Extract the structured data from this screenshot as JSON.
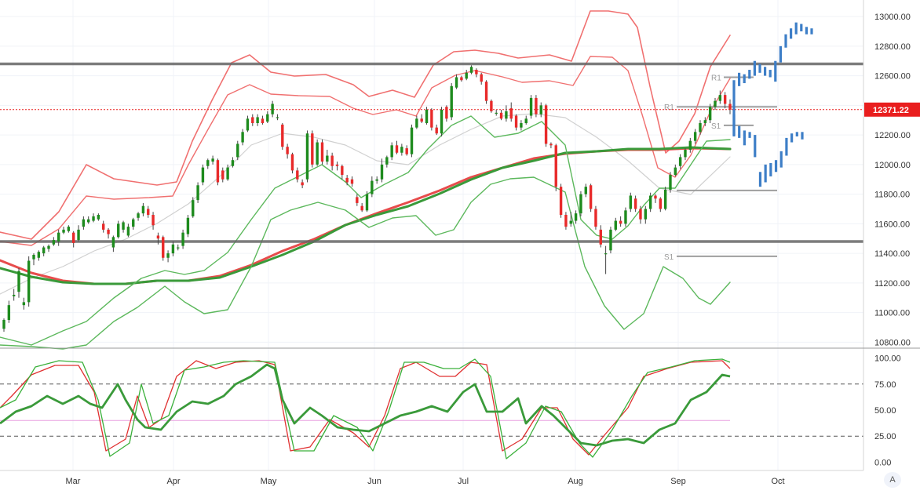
{
  "chart_data": {
    "type": "candlestick",
    "x_labels": [
      "Mar",
      "Apr",
      "May",
      "Jun",
      "Jul",
      "Aug",
      "Sep",
      "Oct"
    ],
    "price_axis": {
      "ticks": [
        "13000.00",
        "12800.00",
        "12600.00",
        "12400.00",
        "12200.00",
        "12000.00",
        "11800.00",
        "11600.00",
        "11400.00",
        "11200.00",
        "11000.00",
        "10800.00"
      ],
      "range": [
        10770,
        13080
      ]
    },
    "last_price": {
      "value": 12371.22,
      "label": "12371.22",
      "color": "#e91e1e"
    },
    "horizontal_levels": [
      12680,
      11480
    ],
    "pivot_lines": [
      {
        "label": "R1",
        "value": 12590
      },
      {
        "label": "R1",
        "value": 12390
      },
      {
        "label": "S1",
        "value": 12265
      },
      {
        "label": "S1",
        "value": 11380
      },
      {
        "label": "",
        "value": 11825
      }
    ],
    "candles": [
      [
        10890,
        10950,
        10870,
        10960
      ],
      [
        10950,
        11050,
        10930,
        11080
      ],
      [
        11110,
        11120,
        11080,
        11160
      ],
      [
        11140,
        11280,
        11100,
        11300
      ],
      [
        11050,
        11070,
        11020,
        11100
      ],
      [
        11070,
        11350,
        11040,
        11380
      ],
      [
        11360,
        11390,
        11320,
        11400
      ],
      [
        11370,
        11410,
        11350,
        11420
      ],
      [
        11400,
        11440,
        11380,
        11450
      ],
      [
        11430,
        11450,
        11410,
        11460
      ],
      [
        11460,
        11490,
        11450,
        11510
      ],
      [
        11480,
        11540,
        11450,
        11560
      ],
      [
        11540,
        11560,
        11530,
        11580
      ],
      [
        11550,
        11580,
        11540,
        11590
      ],
      [
        11540,
        11470,
        11440,
        11550
      ],
      [
        11490,
        11560,
        11480,
        11590
      ],
      [
        11580,
        11630,
        11560,
        11650
      ],
      [
        11610,
        11630,
        11600,
        11650
      ],
      [
        11620,
        11650,
        11610,
        11670
      ],
      [
        11630,
        11660,
        11620,
        11670
      ],
      [
        11600,
        11560,
        11540,
        11620
      ],
      [
        11560,
        11530,
        11500,
        11570
      ],
      [
        11440,
        11510,
        11410,
        11520
      ],
      [
        11510,
        11600,
        11500,
        11620
      ],
      [
        11560,
        11610,
        11540,
        11620
      ],
      [
        11520,
        11580,
        11510,
        11600
      ],
      [
        11580,
        11630,
        11560,
        11640
      ],
      [
        11640,
        11670,
        11620,
        11680
      ],
      [
        11670,
        11720,
        11650,
        11740
      ],
      [
        11700,
        11660,
        11640,
        11720
      ],
      [
        11660,
        11590,
        11560,
        11680
      ],
      [
        11520,
        11500,
        11460,
        11540
      ],
      [
        11510,
        11370,
        11350,
        11520
      ],
      [
        11370,
        11400,
        11340,
        11420
      ],
      [
        11400,
        11460,
        11380,
        11480
      ],
      [
        11440,
        11440,
        11420,
        11460
      ],
      [
        11450,
        11540,
        11430,
        11560
      ],
      [
        11530,
        11640,
        11510,
        11660
      ],
      [
        11650,
        11760,
        11640,
        11780
      ],
      [
        11760,
        11860,
        11740,
        11880
      ],
      [
        11880,
        11980,
        11860,
        12000
      ],
      [
        11990,
        12030,
        11970,
        12040
      ],
      [
        12020,
        12040,
        12000,
        12060
      ],
      [
        12030,
        11880,
        11860,
        12040
      ],
      [
        11960,
        11900,
        11880,
        11980
      ],
      [
        11900,
        11980,
        11890,
        12000
      ],
      [
        11990,
        12030,
        11980,
        12050
      ],
      [
        12050,
        12140,
        12030,
        12160
      ],
      [
        12150,
        12220,
        12130,
        12240
      ],
      [
        12230,
        12310,
        12220,
        12330
      ],
      [
        12320,
        12280,
        12260,
        12340
      ],
      [
        12280,
        12320,
        12260,
        12340
      ],
      [
        12310,
        12280,
        12270,
        12330
      ],
      [
        12290,
        12340,
        12280,
        12360
      ],
      [
        12340,
        12410,
        12320,
        12430
      ],
      [
        12320,
        12320,
        12300,
        12340
      ],
      [
        12270,
        12120,
        12100,
        12280
      ],
      [
        12120,
        12070,
        12040,
        12140
      ],
      [
        12070,
        11960,
        11940,
        12080
      ],
      [
        11960,
        11900,
        11880,
        11980
      ],
      [
        11880,
        11860,
        11840,
        11900
      ],
      [
        11900,
        12210,
        11880,
        12230
      ],
      [
        12210,
        12000,
        11980,
        12230
      ],
      [
        12000,
        12150,
        11990,
        12170
      ],
      [
        12150,
        12020,
        12000,
        12170
      ],
      [
        12020,
        12060,
        12000,
        12100
      ],
      [
        12060,
        11990,
        11960,
        12080
      ],
      [
        12000,
        11990,
        11960,
        12020
      ],
      [
        11990,
        11930,
        11900,
        12000
      ],
      [
        11910,
        11880,
        11860,
        11930
      ],
      [
        11900,
        11870,
        11850,
        11920
      ],
      [
        11780,
        11740,
        11720,
        11800
      ],
      [
        11720,
        11690,
        11680,
        11740
      ],
      [
        11690,
        11800,
        11680,
        11820
      ],
      [
        11800,
        11890,
        11780,
        11920
      ],
      [
        11890,
        11900,
        11870,
        11920
      ],
      [
        11900,
        12000,
        11880,
        12040
      ],
      [
        12000,
        12050,
        11980,
        12060
      ],
      [
        12050,
        12130,
        12030,
        12150
      ],
      [
        12130,
        12080,
        12070,
        12160
      ],
      [
        12080,
        12120,
        12060,
        12140
      ],
      [
        12110,
        12070,
        12060,
        12130
      ],
      [
        12070,
        12250,
        12050,
        12270
      ],
      [
        12250,
        12310,
        12240,
        12330
      ],
      [
        12310,
        12290,
        12280,
        12340
      ],
      [
        12280,
        12370,
        12270,
        12390
      ],
      [
        12370,
        12250,
        12230,
        12380
      ],
      [
        12250,
        12210,
        12200,
        12270
      ],
      [
        12210,
        12370,
        12190,
        12390
      ],
      [
        12390,
        12310,
        12290,
        12400
      ],
      [
        12320,
        12530,
        12300,
        12550
      ],
      [
        12520,
        12590,
        12510,
        12610
      ],
      [
        12590,
        12570,
        12560,
        12600
      ],
      [
        12580,
        12620,
        12570,
        12640
      ],
      [
        12620,
        12660,
        12610,
        12670
      ],
      [
        12640,
        12610,
        12590,
        12650
      ],
      [
        12610,
        12560,
        12540,
        12620
      ],
      [
        12560,
        12430,
        12410,
        12570
      ],
      [
        12430,
        12360,
        12350,
        12440
      ],
      [
        12350,
        12350,
        12330,
        12370
      ],
      [
        12350,
        12310,
        12300,
        12370
      ],
      [
        12310,
        12360,
        12290,
        12400
      ],
      [
        12380,
        12310,
        12290,
        12420
      ],
      [
        12330,
        12250,
        12230,
        12340
      ],
      [
        12250,
        12280,
        12230,
        12300
      ],
      [
        12280,
        12310,
        12270,
        12330
      ],
      [
        12330,
        12450,
        12310,
        12470
      ],
      [
        12450,
        12340,
        12320,
        12470
      ],
      [
        12340,
        12400,
        12320,
        12420
      ],
      [
        12400,
        12140,
        12120,
        12410
      ],
      [
        12140,
        12130,
        12110,
        12150
      ],
      [
        12130,
        11850,
        11820,
        12140
      ],
      [
        11850,
        11660,
        11640,
        11870
      ],
      [
        11660,
        11580,
        11560,
        11680
      ],
      [
        11600,
        11620,
        11580,
        11680
      ],
      [
        11620,
        11670,
        11600,
        11690
      ],
      [
        11670,
        11800,
        11650,
        11820
      ],
      [
        11800,
        11850,
        11780,
        11870
      ],
      [
        11860,
        11700,
        11680,
        11870
      ],
      [
        11700,
        11580,
        11560,
        11720
      ],
      [
        11560,
        11460,
        11440,
        11590
      ],
      [
        11400,
        11400,
        11260,
        11450
      ],
      [
        11420,
        11560,
        11400,
        11580
      ],
      [
        11560,
        11620,
        11550,
        11640
      ],
      [
        11620,
        11600,
        11580,
        11650
      ],
      [
        11600,
        11690,
        11580,
        11710
      ],
      [
        11700,
        11790,
        11680,
        11810
      ],
      [
        11770,
        11700,
        11680,
        11790
      ],
      [
        11700,
        11630,
        11600,
        11720
      ],
      [
        11630,
        11700,
        11600,
        11720
      ],
      [
        11700,
        11790,
        11680,
        11810
      ],
      [
        11790,
        11770,
        11740,
        11800
      ],
      [
        11770,
        11700,
        11680,
        11780
      ],
      [
        11700,
        11830,
        11690,
        11850
      ],
      [
        11830,
        11930,
        11810,
        11950
      ],
      [
        11930,
        11980,
        11920,
        12000
      ],
      [
        11990,
        12050,
        11970,
        12070
      ],
      [
        12050,
        12100,
        12030,
        12110
      ],
      [
        12100,
        12160,
        12080,
        12180
      ],
      [
        12160,
        12220,
        12140,
        12240
      ],
      [
        12220,
        12280,
        12200,
        12300
      ],
      [
        12280,
        12300,
        12260,
        12320
      ],
      [
        12300,
        12390,
        12280,
        12410
      ],
      [
        12390,
        12430,
        12370,
        12450
      ],
      [
        12430,
        12470,
        12410,
        12500
      ],
      [
        12470,
        12410,
        12380,
        12490
      ],
      [
        12410,
        12371.22,
        12340,
        12440
      ]
    ],
    "forecast_bars": [
      [
        12200,
        12570
      ],
      [
        12530,
        12620
      ],
      [
        12550,
        12610
      ],
      [
        12580,
        12640
      ],
      [
        12600,
        12700
      ],
      [
        12620,
        12680
      ],
      [
        12600,
        12660
      ],
      [
        12590,
        12640
      ],
      [
        12560,
        12700
      ],
      [
        12690,
        12800
      ],
      [
        12790,
        12880
      ],
      [
        12850,
        12920
      ],
      [
        12880,
        12960
      ],
      [
        12900,
        12950
      ],
      [
        12880,
        12930
      ],
      [
        12880,
        12920
      ],
      [
        12190,
        12340
      ],
      [
        12180,
        12260
      ],
      [
        12130,
        12230
      ],
      [
        12180,
        12220
      ],
      [
        12050,
        12200
      ],
      [
        11850,
        11950
      ],
      [
        11880,
        12000
      ],
      [
        11920,
        12010
      ],
      [
        11950,
        12030
      ],
      [
        11980,
        12090
      ],
      [
        12060,
        12180
      ],
      [
        12150,
        12210
      ],
      [
        12190,
        12220
      ],
      [
        12170,
        12220
      ]
    ],
    "oscillator": {
      "ticks": [
        "100.00",
        "75.00",
        "50.00",
        "25.00",
        "0.00"
      ],
      "range": [
        -8,
        108
      ],
      "levels": [
        75,
        25
      ],
      "mid_level": 40
    },
    "colors": {
      "up": "#1e8b1e",
      "down": "#e82a2a",
      "upper_band": "#f07070",
      "lower_band": "#5cb85c",
      "midline": "#d0d0d0",
      "ma_red": "#e74c4c",
      "ma_green": "#3a9a3a",
      "forecast": "#3d7ec7",
      "level": "#666666",
      "pivot": "#9e9e9e",
      "osc_k": "#e03030",
      "osc_d": "#3ab03a",
      "osc_bold": "#3a9a3a"
    }
  },
  "ui": {
    "auto_label": "A"
  }
}
